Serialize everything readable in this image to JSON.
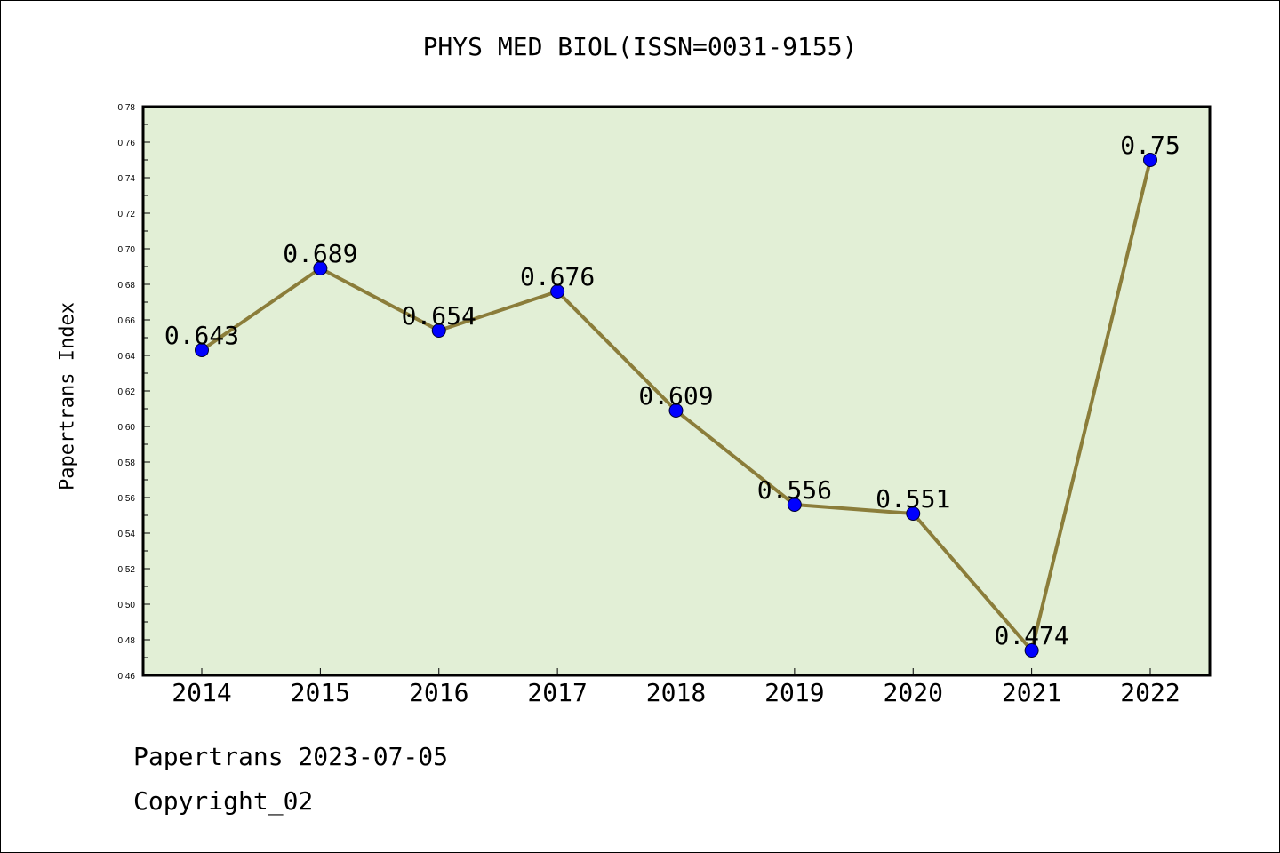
{
  "chart_data": {
    "type": "line",
    "title": "PHYS MED BIOL(ISSN=0031-9155)",
    "xlabel": "",
    "ylabel": "Papertrans Index",
    "categories": [
      "2014",
      "2015",
      "2016",
      "2017",
      "2018",
      "2019",
      "2020",
      "2021",
      "2022"
    ],
    "values": [
      0.643,
      0.689,
      0.654,
      0.676,
      0.609,
      0.556,
      0.551,
      0.474,
      0.75
    ],
    "data_labels": [
      "0.643",
      "0.689",
      "0.654",
      "0.676",
      "0.609",
      "0.556",
      "0.551",
      "0.474",
      "0.75"
    ],
    "ylim": [
      0.46,
      0.78
    ],
    "y_ticks": [
      "0.46",
      "0.48",
      "0.50",
      "0.52",
      "0.54",
      "0.56",
      "0.58",
      "0.60",
      "0.62",
      "0.64",
      "0.66",
      "0.68",
      "0.70",
      "0.72",
      "0.74",
      "0.76",
      "0.78"
    ],
    "grid": false,
    "legend": "none",
    "colors": {
      "plot_background": "#e2efd6",
      "line": "#8b7d3a",
      "marker": "#0000ff"
    }
  },
  "footer": {
    "date_text": "Papertrans 2023-07-05",
    "copyright_text": "Copyright_02"
  }
}
